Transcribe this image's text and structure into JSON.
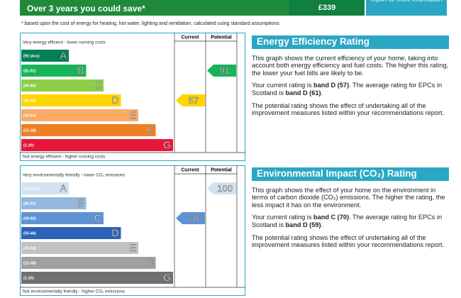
{
  "summary": {
    "text": "Over 3 years you could save*",
    "amount": "£339",
    "link": "report for more information"
  },
  "footnote": "* based upon the cost of energy for heating, hot water, lighting and ventilation, calculated using standard assumptions",
  "energy_chart": {
    "top_label": "Very energy efficient - lower running costs",
    "bottom_label": "Not energy efficient - higher running costs",
    "columns": [
      "Current",
      "Potential"
    ],
    "bands": [
      {
        "range": "(92 plus)",
        "letter": "A",
        "color": "#008054"
      },
      {
        "range": "(81-91)",
        "letter": "B",
        "color": "#19b459"
      },
      {
        "range": "(69-80)",
        "letter": "C",
        "color": "#8dce46"
      },
      {
        "range": "(55-68)",
        "letter": "D",
        "color": "#ffd500"
      },
      {
        "range": "(39-54)",
        "letter": "E",
        "color": "#fcaa65"
      },
      {
        "range": "(21-38)",
        "letter": "F",
        "color": "#ef8023"
      },
      {
        "range": "(1-20)",
        "letter": "G",
        "color": "#e9153b"
      }
    ],
    "current": {
      "value": 57,
      "band": "D"
    },
    "potential": {
      "value": 91,
      "band": "B"
    }
  },
  "environment_chart": {
    "top_label": "Very environmentally friendly - lower CO₂ emissions",
    "bottom_label": "Not environmentally friendly - higher CO₂ emissions",
    "columns": [
      "Current",
      "Potential"
    ],
    "bands": [
      {
        "range": "(92 plus)",
        "letter": "A",
        "color": "#d3e2f2"
      },
      {
        "range": "(81-91)",
        "letter": "B",
        "color": "#93b7df"
      },
      {
        "range": "(69-80)",
        "letter": "C",
        "color": "#5f92d2"
      },
      {
        "range": "(55-68)",
        "letter": "D",
        "color": "#2c63b9"
      },
      {
        "range": "(39-54)",
        "letter": "E",
        "color": "#c2c2c2"
      },
      {
        "range": "(21-38)",
        "letter": "F",
        "color": "#a0a0a0"
      },
      {
        "range": "(1-20)",
        "letter": "G",
        "color": "#707070"
      }
    ],
    "current": {
      "value": 70,
      "band": "C"
    },
    "potential": {
      "value": 100,
      "band": "A"
    }
  },
  "energy_text": {
    "heading": "Energy Efficiency Rating",
    "paragraphs": [
      [
        {
          "text": "This graph shows the current efficiency of your home, taking into account both energy efficiency and fuel costs. The higher this rating, the lower your fuel bills are likely to be."
        }
      ],
      [
        {
          "text": "Your current rating is "
        },
        {
          "text": "band D (57)",
          "bold": true
        },
        {
          "text": ". The average rating for EPCs in Scotland is "
        },
        {
          "text": "band D (61)",
          "bold": true
        },
        {
          "text": "."
        }
      ],
      [
        {
          "text": "The potential rating shows the effect of undertaking all of the improvement measures listed within your recommendations report."
        }
      ]
    ]
  },
  "environment_text": {
    "heading": "Environmental Impact (CO₂) Rating",
    "paragraphs": [
      [
        {
          "text": "This graph shows the effect of your home on the environment in terms of carbon dioxide (CO₂) emissions. The higher the rating, the less impact it has on the environment."
        }
      ],
      [
        {
          "text": "Your current rating is "
        },
        {
          "text": "band C (70)",
          "bold": true
        },
        {
          "text": ". The average rating for EPCs in Scotland is "
        },
        {
          "text": "band D (59)",
          "bold": true
        },
        {
          "text": "."
        }
      ],
      [
        {
          "text": "The potential rating shows the effect of undertaking all of the improvement measures listed within your recommendations report."
        }
      ]
    ]
  }
}
